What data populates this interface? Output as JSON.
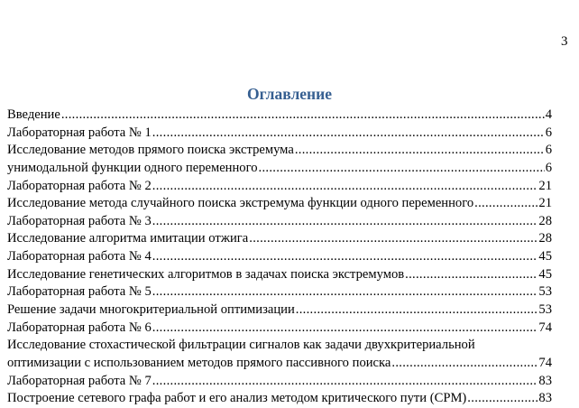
{
  "page_number": "3",
  "title": "Оглавление",
  "accent_color": "#365F91",
  "entries": [
    {
      "text": "Введение",
      "page": "4"
    },
    {
      "text": "Лабораторная работа № 1",
      "page": "6"
    },
    {
      "text": "Исследование методов прямого поиска экстремума",
      "page": "6"
    },
    {
      "text": "унимодальной функции одного переменного",
      "page": "6"
    },
    {
      "text": "Лабораторная работа № 2",
      "page": "21"
    },
    {
      "text": "Исследование метода случайного поиска экстремума  функции одного переменного",
      "page": "21"
    },
    {
      "text": "Лабораторная работа № 3",
      "page": "28"
    },
    {
      "text": "Исследование алгоритма имитации отжига",
      "page": "28"
    },
    {
      "text": "Лабораторная работа № 4",
      "page": "45"
    },
    {
      "text": "Исследование генетических алгоритмов в задачах поиска экстремумов",
      "page": "45"
    },
    {
      "text": "Лабораторная работа № 5",
      "page": "53"
    },
    {
      "text": "Решение задачи многокритериальной оптимизации",
      "page": "53"
    },
    {
      "text": "Лабораторная работа № 6",
      "page": "74"
    },
    {
      "text": "Исследование стохастической фильтрации сигналов как задачи двухкритериальной",
      "continuation": "оптимизации с использованием методов прямого пассивного поиска",
      "page": "74"
    },
    {
      "text": "Лабораторная работа № 7",
      "page": "83"
    },
    {
      "text": "Построение сетевого графа работ и его анализ методом критического пути (CPM)",
      "page": "83"
    }
  ]
}
